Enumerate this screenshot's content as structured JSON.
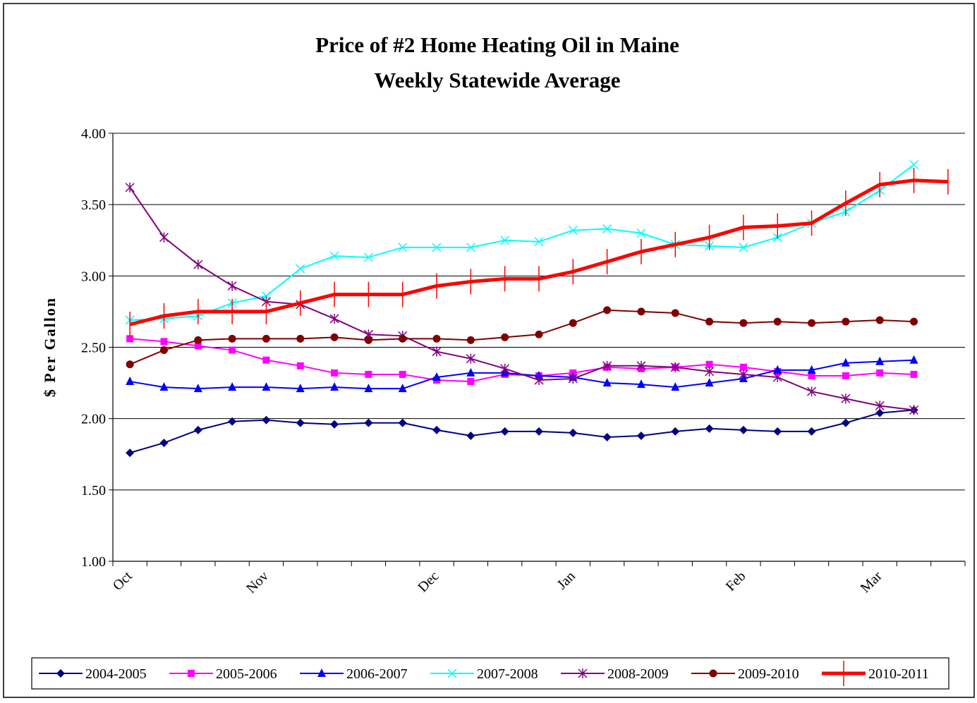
{
  "chart_data": {
    "type": "line",
    "title": "Price of #2 Home Heating Oil in Maine",
    "subtitle": "Weekly Statewide Average",
    "y_label": "$ Per Gallon",
    "categories": [
      "Oct",
      null,
      null,
      null,
      "Nov",
      null,
      null,
      null,
      null,
      "Dec",
      null,
      null,
      null,
      "Jan",
      null,
      null,
      null,
      null,
      "Feb",
      null,
      null,
      null,
      "Mar",
      null,
      null
    ],
    "ylim": [
      1,
      4
    ],
    "yticks": [
      {
        "value": 1,
        "label": "1.00"
      },
      {
        "value": 1.5,
        "label": "1.50"
      },
      {
        "value": 2,
        "label": "2.00"
      },
      {
        "value": 2.5,
        "label": "2.50"
      },
      {
        "value": 3,
        "label": "3.00"
      },
      {
        "value": 3.5,
        "label": "3.50"
      },
      {
        "value": 4,
        "label": "4.00"
      }
    ],
    "grid": true,
    "legend": "bottom",
    "series": [
      {
        "name": "2004-2005",
        "color": "#000080",
        "marker": "diamond",
        "values": [
          1.76,
          1.83,
          1.92,
          1.98,
          1.99,
          1.97,
          1.96,
          1.97,
          1.97,
          1.92,
          1.88,
          1.91,
          1.91,
          1.9,
          1.87,
          1.88,
          1.91,
          1.93,
          1.92,
          1.91,
          1.91,
          1.97,
          2.04,
          2.06,
          null
        ]
      },
      {
        "name": "2005-2006",
        "color": "#ff00ff",
        "marker": "square",
        "values": [
          2.56,
          2.54,
          2.51,
          2.48,
          2.41,
          2.37,
          2.32,
          2.31,
          2.31,
          2.27,
          2.26,
          2.31,
          2.3,
          2.32,
          2.36,
          2.35,
          2.36,
          2.38,
          2.36,
          2.33,
          2.3,
          2.3,
          2.32,
          2.31,
          null
        ]
      },
      {
        "name": "2006-2007",
        "color": "#0000ff",
        "marker": "triangle",
        "values": [
          2.26,
          2.22,
          2.21,
          2.22,
          2.22,
          2.21,
          2.22,
          2.21,
          2.21,
          2.29,
          2.32,
          2.32,
          2.3,
          2.29,
          2.25,
          2.24,
          2.22,
          2.25,
          2.28,
          2.34,
          2.34,
          2.39,
          2.4,
          2.41,
          null
        ]
      },
      {
        "name": "2007-2008",
        "color": "#00ffff",
        "marker": "x",
        "values": [
          2.69,
          2.7,
          2.72,
          2.81,
          2.86,
          3.05,
          3.14,
          3.13,
          3.2,
          3.2,
          3.2,
          3.25,
          3.24,
          3.32,
          3.33,
          3.3,
          3.22,
          3.21,
          3.2,
          3.27,
          3.37,
          3.45,
          3.6,
          3.78,
          null
        ]
      },
      {
        "name": "2008-2009",
        "color": "#800080",
        "marker": "star",
        "values": [
          3.62,
          3.27,
          3.08,
          2.93,
          2.82,
          2.8,
          2.7,
          2.59,
          2.58,
          2.47,
          2.42,
          2.35,
          2.27,
          2.28,
          2.37,
          2.37,
          2.36,
          2.33,
          2.31,
          2.29,
          2.19,
          2.14,
          2.09,
          2.06,
          null
        ]
      },
      {
        "name": "2009-2010",
        "color": "#800000",
        "marker": "circle",
        "values": [
          2.38,
          2.48,
          2.55,
          2.56,
          2.56,
          2.56,
          2.57,
          2.55,
          2.56,
          2.56,
          2.55,
          2.57,
          2.59,
          2.67,
          2.76,
          2.75,
          2.74,
          2.68,
          2.67,
          2.68,
          2.67,
          2.68,
          2.69,
          2.68,
          null
        ]
      },
      {
        "name": "2010-2011",
        "color": "#ff0000",
        "marker": "dash",
        "line_width": 5,
        "values": [
          2.66,
          2.72,
          2.75,
          2.75,
          2.75,
          2.81,
          2.87,
          2.87,
          2.87,
          2.93,
          2.96,
          2.98,
          2.98,
          3.03,
          3.1,
          3.17,
          3.22,
          3.27,
          3.34,
          3.35,
          3.37,
          3.51,
          3.64,
          3.67,
          3.66
        ]
      }
    ]
  }
}
